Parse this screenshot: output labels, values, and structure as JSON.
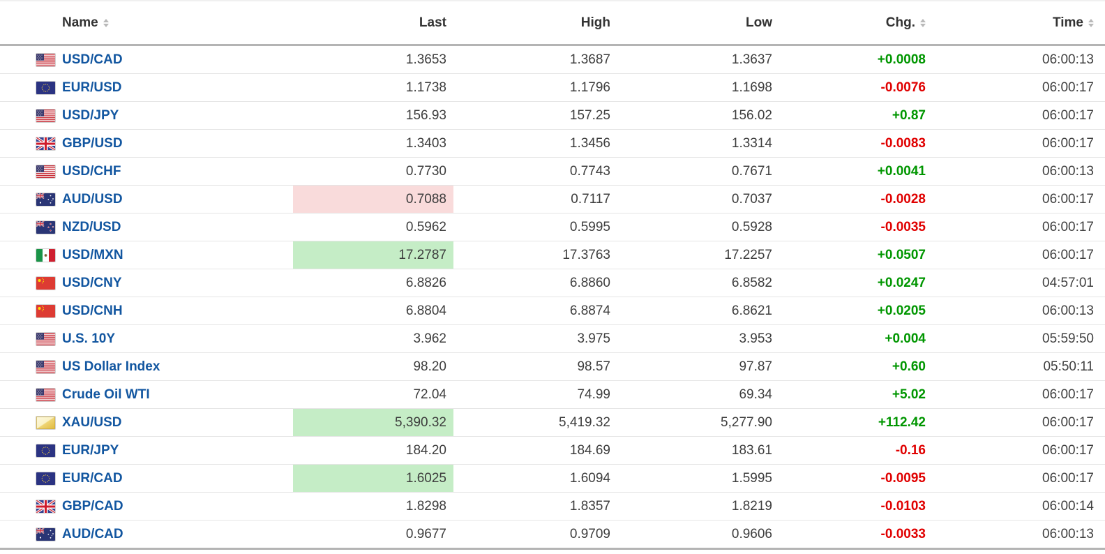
{
  "colors": {
    "link_blue": "#1256a0",
    "change_up_green": "#009600",
    "change_down_red": "#e00000",
    "last_highlight_up": "#c5edc6",
    "last_highlight_down": "#f9dbdb",
    "header_text": "#333333",
    "cell_text": "#3d3d3d",
    "header_border": "#b4b4b4",
    "row_border": "#e5e5e5",
    "sort_icon_gray": "#b9b9b9"
  },
  "table": {
    "columns": [
      {
        "label": "Name",
        "sortable": true
      },
      {
        "label": "Last",
        "sortable": false
      },
      {
        "label": "High",
        "sortable": false
      },
      {
        "label": "Low",
        "sortable": false
      },
      {
        "label": "Chg.",
        "sortable": true
      },
      {
        "label": "Time",
        "sortable": true
      }
    ],
    "rows": [
      {
        "flag": "us",
        "name": "USD/CAD",
        "last": "1.3653",
        "high": "1.3687",
        "low": "1.3637",
        "chg": "+0.0008",
        "chg_dir": "up",
        "last_highlight": "none",
        "time": "06:00:13"
      },
      {
        "flag": "eu",
        "name": "EUR/USD",
        "last": "1.1738",
        "high": "1.1796",
        "low": "1.1698",
        "chg": "-0.0076",
        "chg_dir": "down",
        "last_highlight": "none",
        "time": "06:00:17"
      },
      {
        "flag": "us",
        "name": "USD/JPY",
        "last": "156.93",
        "high": "157.25",
        "low": "156.02",
        "chg": "+0.87",
        "chg_dir": "up",
        "last_highlight": "none",
        "time": "06:00:17"
      },
      {
        "flag": "uk",
        "name": "GBP/USD",
        "last": "1.3403",
        "high": "1.3456",
        "low": "1.3314",
        "chg": "-0.0083",
        "chg_dir": "down",
        "last_highlight": "none",
        "time": "06:00:17"
      },
      {
        "flag": "us",
        "name": "USD/CHF",
        "last": "0.7730",
        "high": "0.7743",
        "low": "0.7671",
        "chg": "+0.0041",
        "chg_dir": "up",
        "last_highlight": "none",
        "time": "06:00:13"
      },
      {
        "flag": "au",
        "name": "AUD/USD",
        "last": "0.7088",
        "high": "0.7117",
        "low": "0.7037",
        "chg": "-0.0028",
        "chg_dir": "down",
        "last_highlight": "down",
        "time": "06:00:17"
      },
      {
        "flag": "nz",
        "name": "NZD/USD",
        "last": "0.5962",
        "high": "0.5995",
        "low": "0.5928",
        "chg": "-0.0035",
        "chg_dir": "down",
        "last_highlight": "none",
        "time": "06:00:17"
      },
      {
        "flag": "mx",
        "name": "USD/MXN",
        "last": "17.2787",
        "high": "17.3763",
        "low": "17.2257",
        "chg": "+0.0507",
        "chg_dir": "up",
        "last_highlight": "up",
        "time": "06:00:17"
      },
      {
        "flag": "cn",
        "name": "USD/CNY",
        "last": "6.8826",
        "high": "6.8860",
        "low": "6.8582",
        "chg": "+0.0247",
        "chg_dir": "up",
        "last_highlight": "none",
        "time": "04:57:01"
      },
      {
        "flag": "cn",
        "name": "USD/CNH",
        "last": "6.8804",
        "high": "6.8874",
        "low": "6.8621",
        "chg": "+0.0205",
        "chg_dir": "up",
        "last_highlight": "none",
        "time": "06:00:13"
      },
      {
        "flag": "us",
        "name": "U.S. 10Y",
        "last": "3.962",
        "high": "3.975",
        "low": "3.953",
        "chg": "+0.004",
        "chg_dir": "up",
        "last_highlight": "none",
        "time": "05:59:50"
      },
      {
        "flag": "us",
        "name": "US Dollar Index",
        "last": "98.20",
        "high": "98.57",
        "low": "97.87",
        "chg": "+0.60",
        "chg_dir": "up",
        "last_highlight": "none",
        "time": "05:50:11"
      },
      {
        "flag": "us",
        "name": "Crude Oil WTI",
        "last": "72.04",
        "high": "74.99",
        "low": "69.34",
        "chg": "+5.02",
        "chg_dir": "up",
        "last_highlight": "none",
        "time": "06:00:17"
      },
      {
        "flag": "gold",
        "name": "XAU/USD",
        "last": "5,390.32",
        "high": "5,419.32",
        "low": "5,277.90",
        "chg": "+112.42",
        "chg_dir": "up",
        "last_highlight": "up",
        "time": "06:00:17"
      },
      {
        "flag": "eu",
        "name": "EUR/JPY",
        "last": "184.20",
        "high": "184.69",
        "low": "183.61",
        "chg": "-0.16",
        "chg_dir": "down",
        "last_highlight": "none",
        "time": "06:00:17"
      },
      {
        "flag": "eu",
        "name": "EUR/CAD",
        "last": "1.6025",
        "high": "1.6094",
        "low": "1.5995",
        "chg": "-0.0095",
        "chg_dir": "down",
        "last_highlight": "up",
        "time": "06:00:17"
      },
      {
        "flag": "uk",
        "name": "GBP/CAD",
        "last": "1.8298",
        "high": "1.8357",
        "low": "1.8219",
        "chg": "-0.0103",
        "chg_dir": "down",
        "last_highlight": "none",
        "time": "06:00:14"
      },
      {
        "flag": "au",
        "name": "AUD/CAD",
        "last": "0.9677",
        "high": "0.9709",
        "low": "0.9606",
        "chg": "-0.0033",
        "chg_dir": "down",
        "last_highlight": "none",
        "time": "06:00:13"
      }
    ]
  }
}
